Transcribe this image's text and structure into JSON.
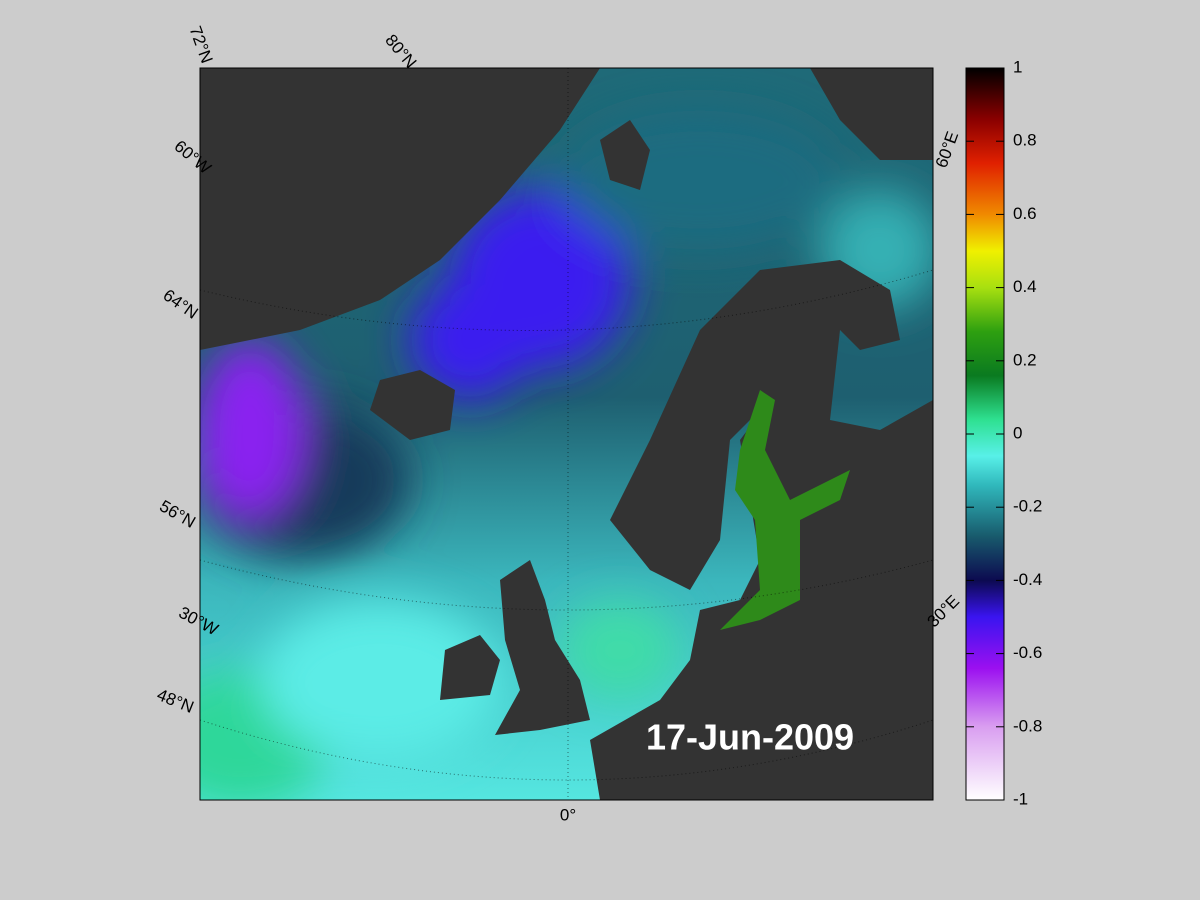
{
  "map": {
    "date": "17-Jun-2009",
    "graticule_labels": [
      "72°N",
      "80°N",
      "60°W",
      "64°N",
      "56°N",
      "30°W",
      "48°N",
      "0°",
      "60°E",
      "30°E"
    ],
    "colorbar": {
      "lim": [
        -1,
        1
      ],
      "ticks": [
        -1,
        -0.8,
        -0.6,
        -0.4,
        -0.2,
        0,
        0.2,
        0.4,
        0.6,
        0.8,
        1
      ]
    }
  }
}
